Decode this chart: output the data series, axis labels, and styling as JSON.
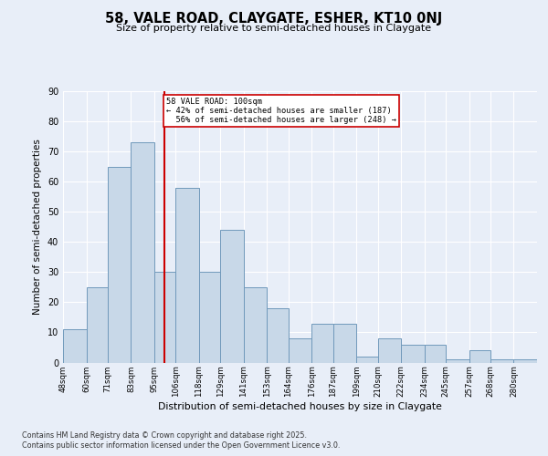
{
  "title": "58, VALE ROAD, CLAYGATE, ESHER, KT10 0NJ",
  "subtitle": "Size of property relative to semi-detached houses in Claygate",
  "xlabel": "Distribution of semi-detached houses by size in Claygate",
  "ylabel": "Number of semi-detached properties",
  "property_label": "58 VALE ROAD: 100sqm",
  "pct_smaller": 42,
  "pct_larger": 56,
  "n_smaller": 187,
  "n_larger": 248,
  "annotation_type": "semi-detached",
  "footer1": "Contains HM Land Registry data © Crown copyright and database right 2025.",
  "footer2": "Contains public sector information licensed under the Open Government Licence v3.0.",
  "bar_color": "#c8d8e8",
  "bar_edge_color": "#7099bb",
  "vline_color": "#cc0000",
  "annotation_box_color": "#cc0000",
  "background_color": "#e8eef8",
  "grid_color": "#ffffff",
  "categories": [
    "48sqm",
    "60sqm",
    "71sqm",
    "83sqm",
    "95sqm",
    "106sqm",
    "118sqm",
    "129sqm",
    "141sqm",
    "153sqm",
    "164sqm",
    "176sqm",
    "187sqm",
    "199sqm",
    "210sqm",
    "222sqm",
    "234sqm",
    "245sqm",
    "257sqm",
    "268sqm",
    "280sqm"
  ],
  "values": [
    11,
    25,
    65,
    73,
    30,
    58,
    30,
    44,
    25,
    18,
    8,
    13,
    13,
    2,
    8,
    6,
    6,
    1,
    4,
    1,
    1
  ],
  "bin_edges": [
    48,
    60,
    71,
    83,
    95,
    106,
    118,
    129,
    141,
    153,
    164,
    176,
    187,
    199,
    210,
    222,
    234,
    245,
    257,
    268,
    280,
    292
  ],
  "ylim": [
    0,
    90
  ],
  "yticks": [
    0,
    10,
    20,
    30,
    40,
    50,
    60,
    70,
    80,
    90
  ],
  "vline_x": 100
}
